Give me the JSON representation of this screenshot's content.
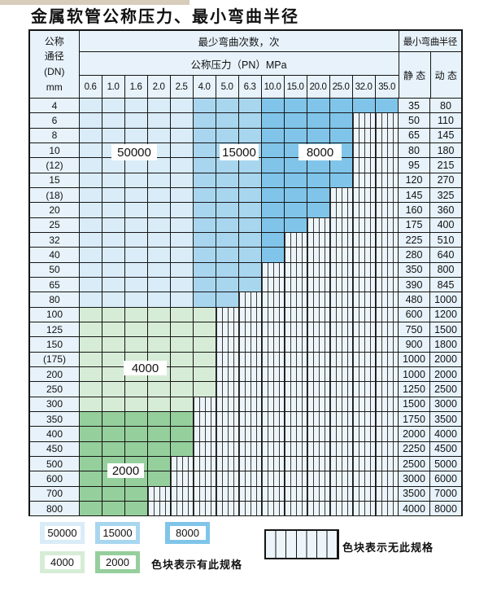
{
  "title": "金属软管公称压力、最小弯曲半径",
  "table": {
    "header": {
      "dn_label": "公称\n通径\n(DN)\nmm",
      "cycles_label": "最少弯曲次数，次",
      "pressure_label": "公称压力（PN）MPa",
      "radius_label": "最小弯曲半径",
      "static_label": "静 态",
      "dynamic_label": "动 态",
      "pressures": [
        "0.6",
        "1.0",
        "1.6",
        "2.0",
        "2.5",
        "4.0",
        "5.0",
        "6.3",
        "10.0",
        "15.0",
        "20.0",
        "25.0",
        "32.0",
        "35.0"
      ]
    },
    "cycle_zone_legend": {
      "5": "50000",
      "1": "15000",
      "8": "8000",
      "4": "4000",
      "2": "2000",
      "n": "no-spec"
    },
    "rows": [
      {
        "dn": "4",
        "cells": "55555111888888",
        "static": "35",
        "dynamic": "80"
      },
      {
        "dn": "6",
        "cells": "555551118888nn",
        "static": "50",
        "dynamic": "110"
      },
      {
        "dn": "8",
        "cells": "555551118888nn",
        "static": "65",
        "dynamic": "145"
      },
      {
        "dn": "10",
        "cells": "555551118888nn",
        "static": "80",
        "dynamic": "180"
      },
      {
        "dn": "(12)",
        "cells": "555551118888nn",
        "static": "95",
        "dynamic": "215"
      },
      {
        "dn": "15",
        "cells": "555551118888nn",
        "static": "120",
        "dynamic": "270"
      },
      {
        "dn": "(18)",
        "cells": "55555111888nnn",
        "static": "145",
        "dynamic": "325"
      },
      {
        "dn": "20",
        "cells": "55555111888nnn",
        "static": "160",
        "dynamic": "360"
      },
      {
        "dn": "25",
        "cells": "5555511188nnnn",
        "static": "175",
        "dynamic": "400"
      },
      {
        "dn": "32",
        "cells": "555551118nnnnn",
        "static": "225",
        "dynamic": "510"
      },
      {
        "dn": "40",
        "cells": "555551118nnnnn",
        "static": "280",
        "dynamic": "640"
      },
      {
        "dn": "50",
        "cells": "55555111nnnnnn",
        "static": "350",
        "dynamic": "800"
      },
      {
        "dn": "65",
        "cells": "55555111nnnnnn",
        "static": "390",
        "dynamic": "845"
      },
      {
        "dn": "80",
        "cells": "5555511nnnnnnn",
        "static": "480",
        "dynamic": "1000"
      },
      {
        "dn": "100",
        "cells": "444444nnnnnnnn",
        "static": "600",
        "dynamic": "1200"
      },
      {
        "dn": "125",
        "cells": "444444nnnnnnnn",
        "static": "750",
        "dynamic": "1500"
      },
      {
        "dn": "150",
        "cells": "444444nnnnnnnn",
        "static": "900",
        "dynamic": "1800"
      },
      {
        "dn": "(175)",
        "cells": "444444nnnnnnnn",
        "static": "1000",
        "dynamic": "2000"
      },
      {
        "dn": "200",
        "cells": "444444nnnnnnnn",
        "static": "1000",
        "dynamic": "2000"
      },
      {
        "dn": "250",
        "cells": "444444nnnnnnnn",
        "static": "1250",
        "dynamic": "2500"
      },
      {
        "dn": "300",
        "cells": "44444nnnnnnnnn",
        "static": "1500",
        "dynamic": "3000"
      },
      {
        "dn": "350",
        "cells": "22222nnnnnnnnn",
        "static": "1750",
        "dynamic": "3500"
      },
      {
        "dn": "400",
        "cells": "22222nnnnnnnnn",
        "static": "2000",
        "dynamic": "4000"
      },
      {
        "dn": "450",
        "cells": "22222nnnnnnnnn",
        "static": "2250",
        "dynamic": "4500"
      },
      {
        "dn": "500",
        "cells": "2222nnnnnnnnnn",
        "static": "2500",
        "dynamic": "5000"
      },
      {
        "dn": "600",
        "cells": "2222nnnnnnnnnn",
        "static": "3000",
        "dynamic": "6000"
      },
      {
        "dn": "700",
        "cells": "222nnnnnnnnnnn",
        "static": "3500",
        "dynamic": "7000"
      },
      {
        "dn": "800",
        "cells": "222nnnnnnnnnnn",
        "static": "4000",
        "dynamic": "8000"
      }
    ]
  },
  "overlays": {
    "v50000": "50000",
    "v15000": "15000",
    "v8000": "8000",
    "v4000": "4000",
    "v2000": "2000"
  },
  "legend": {
    "items": [
      {
        "label": "50000"
      },
      {
        "label": "15000"
      },
      {
        "label": "8000"
      },
      {
        "label": "4000"
      },
      {
        "label": "2000"
      }
    ],
    "has_spec_note": "色块表示有此规格",
    "no_spec_note": "色块表示无此规格"
  },
  "colors": {
    "cycles_50000": "#d9ecf8",
    "cycles_15000": "#a9d6ef",
    "cycles_8000": "#80c5e9",
    "cycles_4000": "#d6ecd6",
    "cycles_2000": "#95cf9c",
    "no_spec_fill": "#edf5fb",
    "header_bg": "#e7f2fa",
    "border": "#151515"
  }
}
